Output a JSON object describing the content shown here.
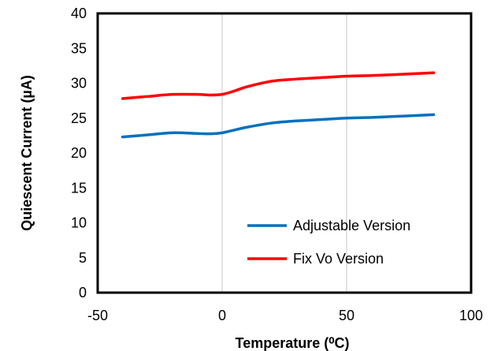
{
  "chart_data": {
    "type": "line",
    "title": "",
    "xlabel": "Temperature (⁰C)",
    "ylabel": "Quiescent Current (µA)",
    "xlim": [
      -50,
      100
    ],
    "ylim": [
      0,
      40
    ],
    "xticks": [
      -50,
      0,
      50,
      100
    ],
    "yticks": [
      0,
      5,
      10,
      15,
      20,
      25,
      30,
      35,
      40
    ],
    "xtick_labels": [
      "-50",
      "0",
      "50",
      "100"
    ],
    "ytick_labels": [
      "0",
      "5",
      "10",
      "15",
      "20",
      "25",
      "30",
      "35",
      "40"
    ],
    "grid": "vertical",
    "legend_position": "bottom-right",
    "series": [
      {
        "name": "Adjustable Version",
        "color": "#0070C0",
        "x": [
          -40,
          -30,
          -20,
          -10,
          -5,
          0,
          5,
          10,
          20,
          30,
          40,
          50,
          60,
          70,
          85
        ],
        "y": [
          22.3,
          22.6,
          22.9,
          22.8,
          22.75,
          22.9,
          23.3,
          23.7,
          24.3,
          24.6,
          24.8,
          25.0,
          25.1,
          25.25,
          25.5
        ]
      },
      {
        "name": "Fix Vo Version",
        "color": "#FF0000",
        "x": [
          -40,
          -30,
          -20,
          -10,
          -5,
          0,
          5,
          10,
          20,
          30,
          40,
          50,
          60,
          70,
          85
        ],
        "y": [
          27.8,
          28.1,
          28.4,
          28.4,
          28.3,
          28.4,
          28.9,
          29.5,
          30.3,
          30.6,
          30.8,
          31.0,
          31.1,
          31.25,
          31.5
        ]
      }
    ]
  }
}
